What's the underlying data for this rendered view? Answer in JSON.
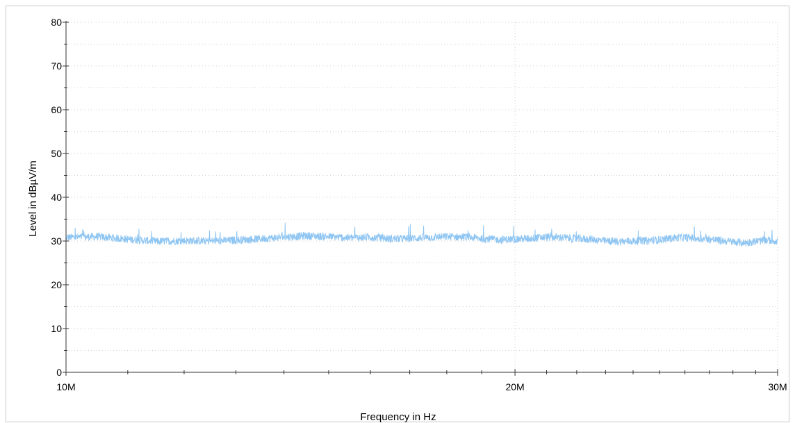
{
  "chart_data": {
    "type": "line",
    "title": "",
    "xlabel": "Frequency in Hz",
    "ylabel": "Level in dBµV/m",
    "x_scale": "log",
    "xlim": [
      10000000,
      30000000
    ],
    "ylim": [
      0,
      80
    ],
    "x_ticks": [
      {
        "value": 10000000,
        "label": "10M"
      },
      {
        "value": 20000000,
        "label": "20M"
      },
      {
        "value": 30000000,
        "label": "30M"
      }
    ],
    "y_ticks": [
      {
        "value": 0,
        "label": "0"
      },
      {
        "value": 10,
        "label": "10"
      },
      {
        "value": 20,
        "label": "20"
      },
      {
        "value": 30,
        "label": "30"
      },
      {
        "value": 40,
        "label": "40"
      },
      {
        "value": 50,
        "label": "50"
      },
      {
        "value": 60,
        "label": "60"
      },
      {
        "value": 70,
        "label": "70"
      },
      {
        "value": 80,
        "label": "80"
      }
    ],
    "grid": true,
    "series": [
      {
        "color": "#8ec5f2",
        "x": [
          10000000,
          10500000,
          11000000,
          11500000,
          12000000,
          12500000,
          13000000,
          13500000,
          14000000,
          14500000,
          15000000,
          15500000,
          16000000,
          16500000,
          17000000,
          17500000,
          18000000,
          18500000,
          19000000,
          19500000,
          20000000,
          20500000,
          21000000,
          21500000,
          22000000,
          22500000,
          23000000,
          23500000,
          24000000,
          24500000,
          25000000,
          25500000,
          26000000,
          26500000,
          27000000,
          27500000,
          28000000,
          28500000,
          29000000,
          29500000,
          30000000
        ],
        "values": [
          30.8,
          31.0,
          30.4,
          29.9,
          30.1,
          30.0,
          30.2,
          30.5,
          30.9,
          31.2,
          31.0,
          30.7,
          30.9,
          30.5,
          30.6,
          30.8,
          31.0,
          30.9,
          30.6,
          30.3,
          30.4,
          30.6,
          30.9,
          30.8,
          30.5,
          30.4,
          30.0,
          29.9,
          30.0,
          30.1,
          30.3,
          30.7,
          30.8,
          30.6,
          30.4,
          30.1,
          29.8,
          29.6,
          29.9,
          30.2,
          30.0
        ]
      }
    ]
  }
}
